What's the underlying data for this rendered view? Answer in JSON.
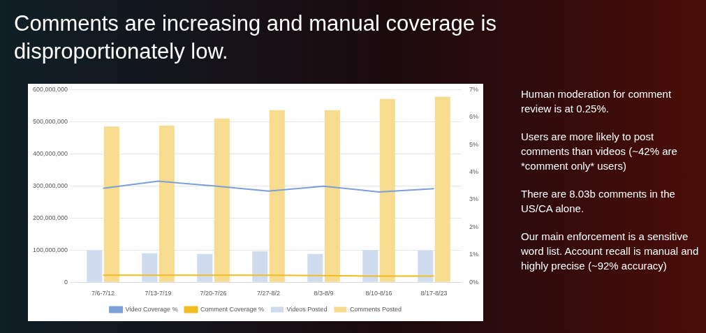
{
  "chart_data": {
    "type": "bar",
    "title": "Comments are increasing and manual coverage is disproportionately low.",
    "categories": [
      "7/6-7/12",
      "7/13-7/19",
      "7/20-7/26",
      "7/27-8/2",
      "8/3-8/9",
      "8/10-8/16",
      "8/17-8/23"
    ],
    "series": [
      {
        "name": "Videos Posted",
        "color": "#cfdcef",
        "values": [
          99000000,
          90000000,
          88000000,
          96000000,
          88000000,
          100000000,
          99000000
        ]
      },
      {
        "name": "Comments Posted",
        "color": "#f7dc8f",
        "values": [
          485000000,
          488000000,
          510000000,
          536000000,
          536000000,
          571000000,
          578000000
        ]
      },
      {
        "name": "Video Coverage %",
        "type": "line",
        "axis": "y2",
        "color": "#7b9fd6",
        "values": [
          3.41,
          3.67,
          3.5,
          3.31,
          3.49,
          3.28,
          3.4
        ]
      },
      {
        "name": "Comment Coverage %",
        "type": "line",
        "axis": "y2",
        "color": "#f2bb1f",
        "values": [
          0.25,
          0.25,
          0.25,
          0.25,
          0.24,
          0.22,
          0.22
        ]
      }
    ],
    "ylim": [
      0,
      600000000
    ],
    "yticks": [
      {
        "value": 0,
        "label": "0"
      },
      {
        "value": 100000000,
        "label": "100,000,000"
      },
      {
        "value": 200000000,
        "label": "200,000,000"
      },
      {
        "value": 300000000,
        "label": "300,000,000"
      },
      {
        "value": 400000000,
        "label": "400,000,000"
      },
      {
        "value": 500000000,
        "label": "500,000,000"
      },
      {
        "value": 600000000,
        "label": "600,000,000"
      }
    ],
    "y2lim": [
      0,
      7
    ],
    "y2ticks": [
      {
        "value": 0,
        "label": "0%"
      },
      {
        "value": 1,
        "label": "1%"
      },
      {
        "value": 2,
        "label": "2%"
      },
      {
        "value": 3,
        "label": "3%"
      },
      {
        "value": 4,
        "label": "4%"
      },
      {
        "value": 5,
        "label": "5%"
      },
      {
        "value": 6,
        "label": "6%"
      },
      {
        "value": 7,
        "label": "7%"
      }
    ],
    "grid": "y",
    "legend": "bottom",
    "marker": "none",
    "annotations": [
      "Human moderation for comment review is at 0.25%.",
      "Users are more likely to post comments than videos (~42% are *comment only* users)",
      "There are 8.03b comments in the US/CA alone.",
      "Our main enforcement is a sensitive word list. Account recall is manual and highly precise (~92% accuracy)"
    ]
  }
}
